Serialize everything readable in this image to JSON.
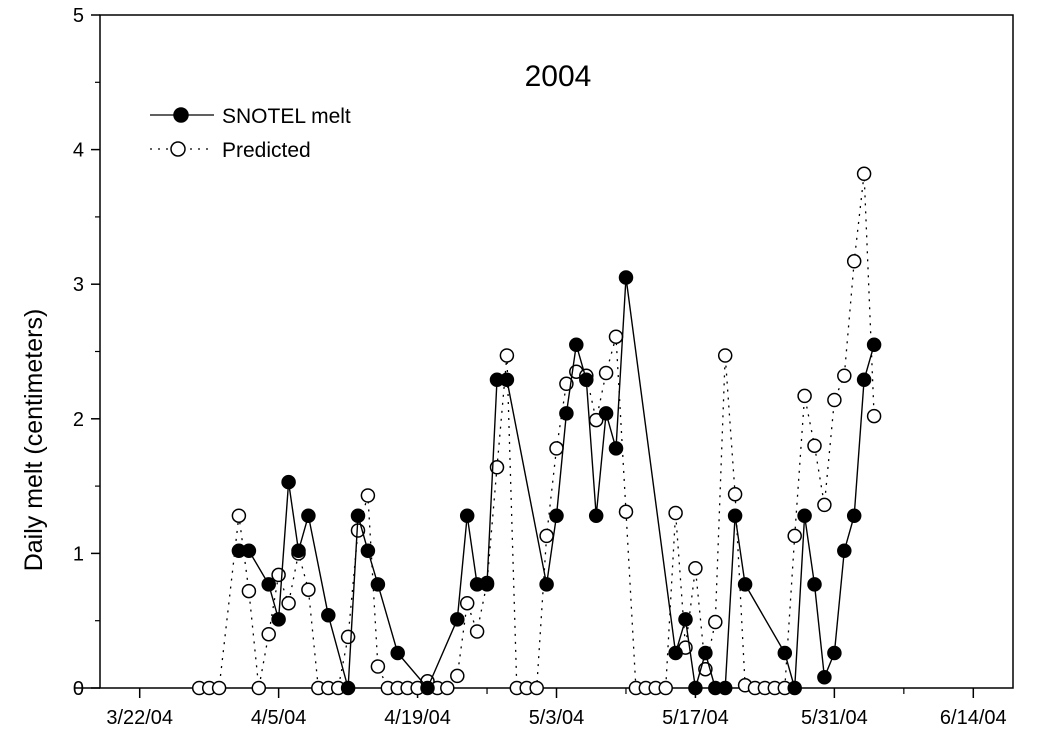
{
  "chart_data": {
    "type": "line",
    "title": "2004",
    "ylabel": "Daily melt (centimeters)",
    "xlabel": "",
    "ylim": [
      0,
      5
    ],
    "y_ticks": [
      "0",
      "1",
      "2",
      "3",
      "4",
      "5"
    ],
    "x_ticks": [
      "3/22/04",
      "4/5/04",
      "4/19/04",
      "5/3/04",
      "5/17/04",
      "5/31/04",
      "6/14/04"
    ],
    "grid": false,
    "legend_position": "top-left",
    "series": [
      {
        "name": "SNOTEL melt",
        "style": "solid line, filled circle markers",
        "color": "#000000",
        "points": [
          [
            "4/1/04",
            1.02
          ],
          [
            "4/2/04",
            1.02
          ],
          [
            "4/4/04",
            0.77
          ],
          [
            "4/5/04",
            0.51
          ],
          [
            "4/6/04",
            1.53
          ],
          [
            "4/7/04",
            1.02
          ],
          [
            "4/8/04",
            1.28
          ],
          [
            "4/10/04",
            0.54
          ],
          [
            "4/12/04",
            0.0
          ],
          [
            "4/13/04",
            1.28
          ],
          [
            "4/14/04",
            1.02
          ],
          [
            "4/15/04",
            0.77
          ],
          [
            "4/17/04",
            0.26
          ],
          [
            "4/20/04",
            0.0
          ],
          [
            "4/23/04",
            0.51
          ],
          [
            "4/24/04",
            1.28
          ],
          [
            "4/25/04",
            0.77
          ],
          [
            "4/26/04",
            0.77
          ],
          [
            "4/27/04",
            2.29
          ],
          [
            "4/28/04",
            2.29
          ],
          [
            "5/2/04",
            0.77
          ],
          [
            "5/3/04",
            1.28
          ],
          [
            "5/4/04",
            2.04
          ],
          [
            "5/5/04",
            2.55
          ],
          [
            "5/6/04",
            2.29
          ],
          [
            "5/7/04",
            1.28
          ],
          [
            "5/8/04",
            2.04
          ],
          [
            "5/9/04",
            1.78
          ],
          [
            "5/10/04",
            3.05
          ],
          [
            "5/15/04",
            0.26
          ],
          [
            "5/16/04",
            0.51
          ],
          [
            "5/17/04",
            0.0
          ],
          [
            "5/18/04",
            0.26
          ],
          [
            "5/19/04",
            0.0
          ],
          [
            "5/20/04",
            0.0
          ],
          [
            "5/21/04",
            1.28
          ],
          [
            "5/22/04",
            0.77
          ],
          [
            "5/26/04",
            0.26
          ],
          [
            "5/27/04",
            0.0
          ],
          [
            "5/28/04",
            1.28
          ],
          [
            "5/29/04",
            0.77
          ],
          [
            "5/30/04",
            0.08
          ],
          [
            "5/31/04",
            0.26
          ],
          [
            "6/1/04",
            1.02
          ],
          [
            "6/2/04",
            1.28
          ],
          [
            "6/3/04",
            2.29
          ],
          [
            "6/4/04",
            2.55
          ]
        ]
      },
      {
        "name": "Predicted",
        "style": "dotted line, open circle markers",
        "color": "#000000",
        "points": [
          [
            "3/28/04",
            0.0
          ],
          [
            "3/29/04",
            0.0
          ],
          [
            "3/30/04",
            0.0
          ],
          [
            "4/1/04",
            1.28
          ],
          [
            "4/2/04",
            0.72
          ],
          [
            "4/3/04",
            0.0
          ],
          [
            "4/4/04",
            0.4
          ],
          [
            "4/5/04",
            0.84
          ],
          [
            "4/6/04",
            0.63
          ],
          [
            "4/7/04",
            1.0
          ],
          [
            "4/8/04",
            0.73
          ],
          [
            "4/9/04",
            0.0
          ],
          [
            "4/10/04",
            0.0
          ],
          [
            "4/11/04",
            0.0
          ],
          [
            "4/12/04",
            0.38
          ],
          [
            "4/13/04",
            1.17
          ],
          [
            "4/14/04",
            1.43
          ],
          [
            "4/15/04",
            0.16
          ],
          [
            "4/16/04",
            0.0
          ],
          [
            "4/17/04",
            0.0
          ],
          [
            "4/18/04",
            0.0
          ],
          [
            "4/19/04",
            0.0
          ],
          [
            "4/20/04",
            0.05
          ],
          [
            "4/21/04",
            0.0
          ],
          [
            "4/22/04",
            0.0
          ],
          [
            "4/23/04",
            0.09
          ],
          [
            "4/24/04",
            0.63
          ],
          [
            "4/25/04",
            0.42
          ],
          [
            "4/26/04",
            0.78
          ],
          [
            "4/27/04",
            1.64
          ],
          [
            "4/28/04",
            2.47
          ],
          [
            "4/29/04",
            0.0
          ],
          [
            "4/30/04",
            0.0
          ],
          [
            "5/1/04",
            0.0
          ],
          [
            "5/2/04",
            1.13
          ],
          [
            "5/3/04",
            1.78
          ],
          [
            "5/4/04",
            2.26
          ],
          [
            "5/5/04",
            2.35
          ],
          [
            "5/6/04",
            2.32
          ],
          [
            "5/7/04",
            1.99
          ],
          [
            "5/8/04",
            2.34
          ],
          [
            "5/9/04",
            2.61
          ],
          [
            "5/10/04",
            1.31
          ],
          [
            "5/11/04",
            0.0
          ],
          [
            "5/12/04",
            0.0
          ],
          [
            "5/13/04",
            0.0
          ],
          [
            "5/14/04",
            0.0
          ],
          [
            "5/15/04",
            1.3
          ],
          [
            "5/16/04",
            0.3
          ],
          [
            "5/17/04",
            0.89
          ],
          [
            "5/18/04",
            0.14
          ],
          [
            "5/19/04",
            0.49
          ],
          [
            "5/20/04",
            2.47
          ],
          [
            "5/21/04",
            1.44
          ],
          [
            "5/22/04",
            0.02
          ],
          [
            "5/23/04",
            0.0
          ],
          [
            "5/24/04",
            0.0
          ],
          [
            "5/25/04",
            0.0
          ],
          [
            "5/26/04",
            0.0
          ],
          [
            "5/27/04",
            1.13
          ],
          [
            "5/28/04",
            2.17
          ],
          [
            "5/29/04",
            1.8
          ],
          [
            "5/30/04",
            1.36
          ],
          [
            "5/31/04",
            2.14
          ],
          [
            "6/1/04",
            2.32
          ],
          [
            "6/2/04",
            3.17
          ],
          [
            "6/3/04",
            3.82
          ],
          [
            "6/4/04",
            2.02
          ]
        ]
      }
    ]
  }
}
